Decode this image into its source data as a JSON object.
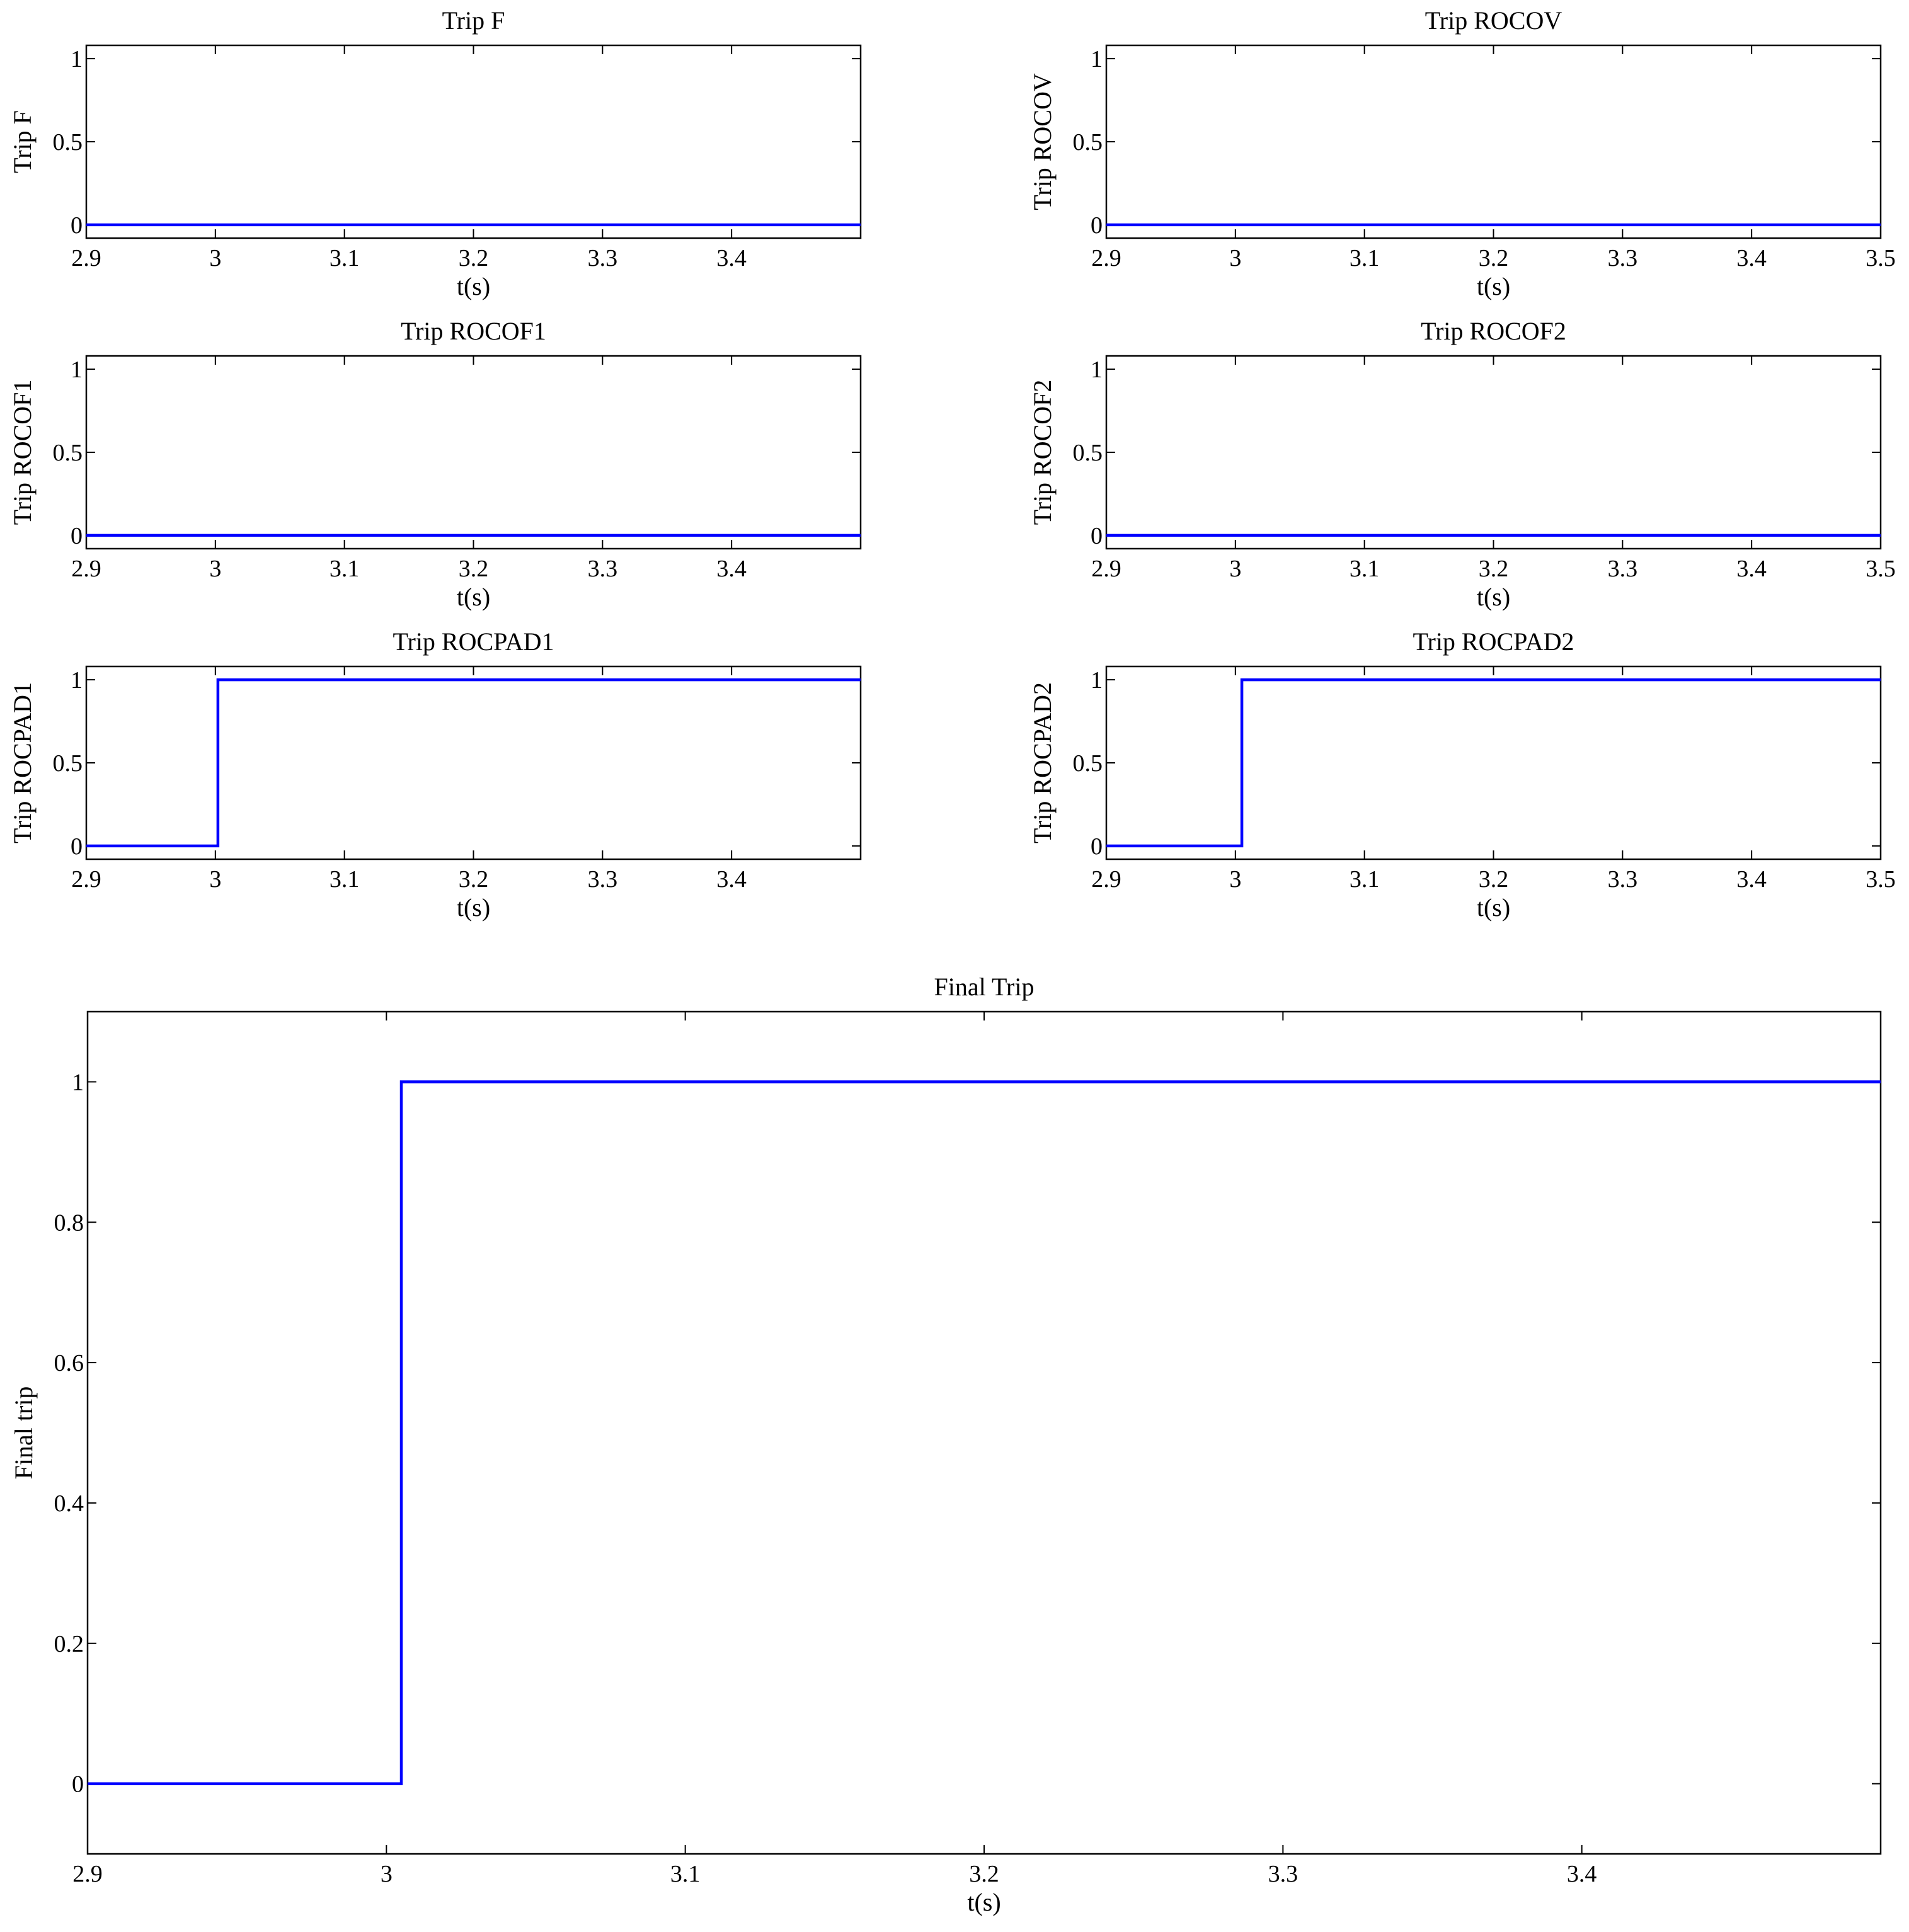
{
  "chart_data": [
    {
      "type": "line",
      "title": "Trip F",
      "xlabel": "t(s)",
      "ylabel": "Trip F",
      "xlim": [
        2.9,
        3.5
      ],
      "ylim": [
        -0.08,
        1.08
      ],
      "xticks": [
        2.9,
        3.0,
        3.1,
        3.2,
        3.3,
        3.4
      ],
      "xtick_labels": [
        "2.9",
        "3",
        "3.1",
        "3.2",
        "3.3",
        "3.4"
      ],
      "yticks": [
        0,
        0.5,
        1
      ],
      "ytick_labels": [
        "0",
        "0.5",
        "1"
      ],
      "line_color": "#0000ff",
      "series": [
        {
          "x": [
            2.9,
            3.5
          ],
          "y": [
            0,
            0
          ]
        }
      ]
    },
    {
      "type": "line",
      "title": "Trip ROCOV",
      "xlabel": "t(s)",
      "ylabel": "Trip ROCOV",
      "xlim": [
        2.9,
        3.5
      ],
      "ylim": [
        -0.08,
        1.08
      ],
      "xticks": [
        2.9,
        3.0,
        3.1,
        3.2,
        3.3,
        3.4,
        3.5
      ],
      "xtick_labels": [
        "2.9",
        "3",
        "3.1",
        "3.2",
        "3.3",
        "3.4",
        "3.5"
      ],
      "yticks": [
        0,
        0.5,
        1
      ],
      "ytick_labels": [
        "0",
        "0.5",
        "1"
      ],
      "line_color": "#0000ff",
      "series": [
        {
          "x": [
            2.9,
            3.5
          ],
          "y": [
            0,
            0
          ]
        }
      ]
    },
    {
      "type": "line",
      "title": "Trip ROCOF1",
      "xlabel": "t(s)",
      "ylabel": "Trip ROCOF1",
      "xlim": [
        2.9,
        3.5
      ],
      "ylim": [
        -0.08,
        1.08
      ],
      "xticks": [
        2.9,
        3.0,
        3.1,
        3.2,
        3.3,
        3.4
      ],
      "xtick_labels": [
        "2.9",
        "3",
        "3.1",
        "3.2",
        "3.3",
        "3.4"
      ],
      "yticks": [
        0,
        0.5,
        1
      ],
      "ytick_labels": [
        "0",
        "0.5",
        "1"
      ],
      "line_color": "#0000ff",
      "series": [
        {
          "x": [
            2.9,
            3.5
          ],
          "y": [
            0,
            0
          ]
        }
      ]
    },
    {
      "type": "line",
      "title": "Trip ROCOF2",
      "xlabel": "t(s)",
      "ylabel": "Trip ROCOF2",
      "xlim": [
        2.9,
        3.5
      ],
      "ylim": [
        -0.08,
        1.08
      ],
      "xticks": [
        2.9,
        3.0,
        3.1,
        3.2,
        3.3,
        3.4,
        3.5
      ],
      "xtick_labels": [
        "2.9",
        "3",
        "3.1",
        "3.2",
        "3.3",
        "3.4",
        "3.5"
      ],
      "yticks": [
        0,
        0.5,
        1
      ],
      "ytick_labels": [
        "0",
        "0.5",
        "1"
      ],
      "line_color": "#0000ff",
      "series": [
        {
          "x": [
            2.9,
            3.5
          ],
          "y": [
            0,
            0
          ]
        }
      ]
    },
    {
      "type": "line",
      "title": "Trip ROCPAD1",
      "xlabel": "t(s)",
      "ylabel": "Trip ROCPAD1",
      "xlim": [
        2.9,
        3.5
      ],
      "ylim": [
        -0.08,
        1.08
      ],
      "xticks": [
        2.9,
        3.0,
        3.1,
        3.2,
        3.3,
        3.4
      ],
      "xtick_labels": [
        "2.9",
        "3",
        "3.1",
        "3.2",
        "3.3",
        "3.4"
      ],
      "yticks": [
        0,
        0.5,
        1
      ],
      "ytick_labels": [
        "0",
        "0.5",
        "1"
      ],
      "line_color": "#0000ff",
      "series": [
        {
          "x": [
            2.9,
            3.002,
            3.002,
            3.5
          ],
          "y": [
            0,
            0,
            1,
            1
          ]
        }
      ]
    },
    {
      "type": "line",
      "title": "Trip ROCPAD2",
      "xlabel": "t(s)",
      "ylabel": "Trip ROCPAD2",
      "xlim": [
        2.9,
        3.5
      ],
      "ylim": [
        -0.08,
        1.08
      ],
      "xticks": [
        2.9,
        3.0,
        3.1,
        3.2,
        3.3,
        3.4,
        3.5
      ],
      "xtick_labels": [
        "2.9",
        "3",
        "3.1",
        "3.2",
        "3.3",
        "3.4",
        "3.5"
      ],
      "yticks": [
        0,
        0.5,
        1
      ],
      "ytick_labels": [
        "0",
        "0.5",
        "1"
      ],
      "line_color": "#0000ff",
      "series": [
        {
          "x": [
            2.9,
            3.005,
            3.005,
            3.5
          ],
          "y": [
            0,
            0,
            1,
            1
          ]
        }
      ]
    },
    {
      "type": "line",
      "title": "Final Trip",
      "xlabel": "t(s)",
      "ylabel": "Final trip",
      "xlim": [
        2.9,
        3.5
      ],
      "ylim": [
        -0.1,
        1.1
      ],
      "xticks": [
        2.9,
        3.0,
        3.1,
        3.2,
        3.3,
        3.4
      ],
      "xtick_labels": [
        "2.9",
        "3",
        "3.1",
        "3.2",
        "3.3",
        "3.4"
      ],
      "yticks": [
        0,
        0.2,
        0.4,
        0.6,
        0.8,
        1
      ],
      "ytick_labels": [
        "0",
        "0.2",
        "0.4",
        "0.6",
        "0.8",
        "1"
      ],
      "line_color": "#0000ff",
      "series": [
        {
          "x": [
            2.9,
            3.005,
            3.005,
            3.5
          ],
          "y": [
            0,
            0,
            1,
            1
          ]
        }
      ]
    }
  ]
}
